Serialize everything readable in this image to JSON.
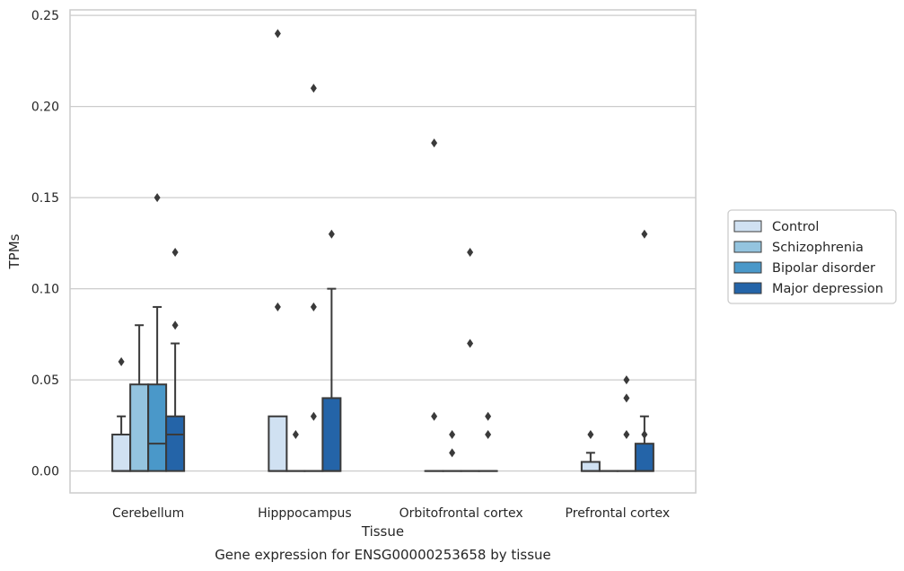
{
  "chart_data": {
    "type": "box",
    "title": "",
    "xlabel": "Tissue",
    "ylabel": "TPMs",
    "caption": "Gene expression for ENSG00000253658 by tissue",
    "ylim": [
      -0.012,
      0.253
    ],
    "yticks": [
      0.0,
      0.05,
      0.1,
      0.15,
      0.2,
      0.25
    ],
    "ytick_labels": [
      "0.00",
      "0.05",
      "0.10",
      "0.15",
      "0.20",
      "0.25"
    ],
    "grid": true,
    "legend_position": "right",
    "categories": [
      "Cerebellum",
      "Hipppocampus",
      "Orbitofrontal cortex",
      "Prefrontal cortex"
    ],
    "series": [
      {
        "name": "Control",
        "color": "#d0e1f2",
        "boxes": [
          {
            "q1": 0.0,
            "median": 0.0,
            "q3": 0.02,
            "whisker_low": 0.0,
            "whisker_high": 0.03,
            "outliers": [
              0.06
            ]
          },
          {
            "q1": 0.0,
            "median": 0.0,
            "q3": 0.03,
            "whisker_low": 0.0,
            "whisker_high": 0.03,
            "outliers": [
              0.09,
              0.24
            ]
          },
          {
            "q1": 0.0,
            "median": 0.0,
            "q3": 0.0,
            "whisker_low": 0.0,
            "whisker_high": 0.0,
            "outliers": [
              0.03,
              0.18
            ]
          },
          {
            "q1": 0.0,
            "median": 0.0,
            "q3": 0.005,
            "whisker_low": 0.0,
            "whisker_high": 0.01,
            "outliers": [
              0.02
            ]
          }
        ]
      },
      {
        "name": "Schizophrenia",
        "color": "#94c4df",
        "boxes": [
          {
            "q1": 0.0,
            "median": 0.0,
            "q3": 0.0475,
            "whisker_low": 0.0,
            "whisker_high": 0.08,
            "outliers": []
          },
          {
            "q1": 0.0,
            "median": 0.0,
            "q3": 0.0,
            "whisker_low": 0.0,
            "whisker_high": 0.0,
            "outliers": [
              0.02
            ]
          },
          {
            "q1": 0.0,
            "median": 0.0,
            "q3": 0.0,
            "whisker_low": 0.0,
            "whisker_high": 0.0,
            "outliers": [
              0.01,
              0.02
            ]
          },
          {
            "q1": 0.0,
            "median": 0.0,
            "q3": 0.0,
            "whisker_low": 0.0,
            "whisker_high": 0.0,
            "outliers": []
          }
        ]
      },
      {
        "name": "Bipolar disorder",
        "color": "#4a98c9",
        "boxes": [
          {
            "q1": 0.0,
            "median": 0.015,
            "q3": 0.0475,
            "whisker_low": 0.0,
            "whisker_high": 0.09,
            "outliers": [
              0.15
            ]
          },
          {
            "q1": 0.0,
            "median": 0.0,
            "q3": 0.0,
            "whisker_low": 0.0,
            "whisker_high": 0.0,
            "outliers": [
              0.03,
              0.09,
              0.21
            ]
          },
          {
            "q1": 0.0,
            "median": 0.0,
            "q3": 0.0,
            "whisker_low": 0.0,
            "whisker_high": 0.0,
            "outliers": [
              0.07,
              0.12
            ]
          },
          {
            "q1": 0.0,
            "median": 0.0,
            "q3": 0.0,
            "whisker_low": 0.0,
            "whisker_high": 0.0,
            "outliers": [
              0.02,
              0.04,
              0.05
            ]
          }
        ]
      },
      {
        "name": "Major depression",
        "color": "#2464a8",
        "boxes": [
          {
            "q1": 0.0,
            "median": 0.02,
            "q3": 0.03,
            "whisker_low": 0.0,
            "whisker_high": 0.07,
            "outliers": [
              0.08,
              0.12
            ]
          },
          {
            "q1": 0.0,
            "median": 0.0,
            "q3": 0.04,
            "whisker_low": 0.0,
            "whisker_high": 0.1,
            "outliers": [
              0.13
            ]
          },
          {
            "q1": 0.0,
            "median": 0.0,
            "q3": 0.0,
            "whisker_low": 0.0,
            "whisker_high": 0.0,
            "outliers": [
              0.02,
              0.03
            ]
          },
          {
            "q1": 0.0,
            "median": 0.0,
            "q3": 0.015,
            "whisker_low": 0.0,
            "whisker_high": 0.03,
            "outliers": [
              0.02,
              0.13
            ]
          }
        ]
      }
    ]
  },
  "colors": {
    "grid": "#cccccc",
    "frame": "#cccccc",
    "box_edge": "#3a3a3a",
    "text": "#262626"
  }
}
